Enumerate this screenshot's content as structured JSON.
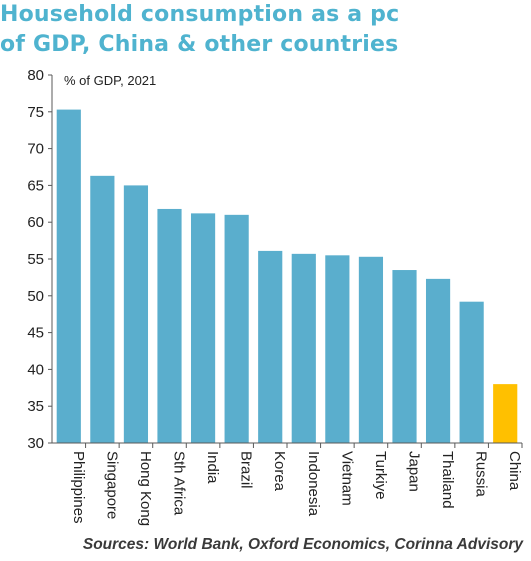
{
  "header": {
    "title_line1": "Household consumption as a pc",
    "title_line2": "of GDP, China & other countries"
  },
  "footer": {
    "source": "Sources: World Bank, Oxford Economics, Corinna Advisory"
  },
  "colors": {
    "title": "#4fb3cf",
    "bar": "#5aaecd",
    "highlight_bar": "#ffc000",
    "axis_text": "#222222"
  },
  "chart_data": {
    "type": "bar",
    "title": "Household consumption as a pc of GDP, China & other countries",
    "ylabel": "% of GDP, 2021",
    "xlabel": "",
    "categories": [
      "Philippines",
      "Singapore",
      "Hong Kong",
      "Sth Africa",
      "India",
      "Brazil",
      "Korea",
      "Indonesia",
      "Vietnam",
      "Turkiye",
      "Japan",
      "Thailand",
      "Russia",
      "China"
    ],
    "values": [
      75.3,
      66.3,
      65.0,
      61.8,
      61.2,
      61.0,
      56.1,
      55.7,
      55.5,
      55.3,
      53.5,
      52.3,
      49.2,
      38.0
    ],
    "highlight": "China",
    "ylim": [
      30,
      80
    ],
    "yticks": [
      30,
      35,
      40,
      45,
      50,
      55,
      60,
      65,
      70,
      75,
      80
    ],
    "grid": false,
    "legend": "none"
  }
}
